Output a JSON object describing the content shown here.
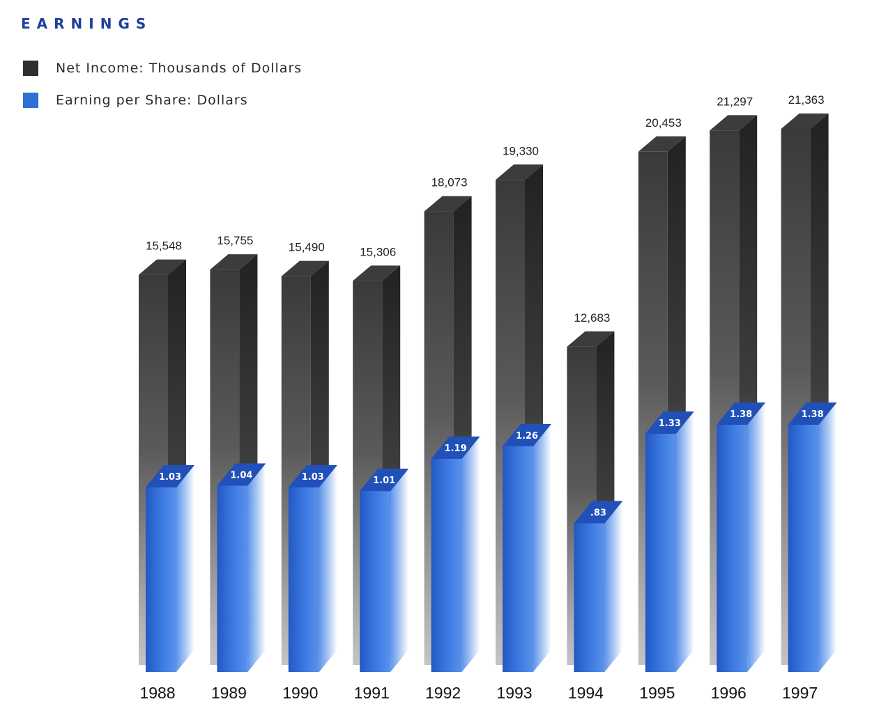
{
  "chart_data": {
    "type": "bar",
    "title": "EARNINGS",
    "categories": [
      "1988",
      "1989",
      "1990",
      "1991",
      "1992",
      "1993",
      "1994",
      "1995",
      "1996",
      "1997"
    ],
    "series": [
      {
        "name": "Net Income: Thousands of Dollars",
        "values": [
          15548,
          15755,
          15490,
          15306,
          18073,
          19330,
          12683,
          20453,
          21297,
          21363
        ],
        "labels": [
          "15,548",
          "15,755",
          "15,490",
          "15,306",
          "18,073",
          "19,330",
          "12,683",
          "20,453",
          "21,297",
          "21,363"
        ],
        "color": "#3a3a3a"
      },
      {
        "name": "Earning per Share: Dollars",
        "values": [
          1.03,
          1.04,
          1.03,
          1.01,
          1.19,
          1.26,
          0.83,
          1.33,
          1.38,
          1.38
        ],
        "labels": [
          "1.03",
          "1.04",
          "1.03",
          "1.01",
          "1.19",
          "1.26",
          ".83",
          "1.33",
          "1.38",
          "1.38"
        ],
        "color": "#2f6fd6"
      }
    ],
    "grid": false,
    "legend_position": "top-left"
  }
}
